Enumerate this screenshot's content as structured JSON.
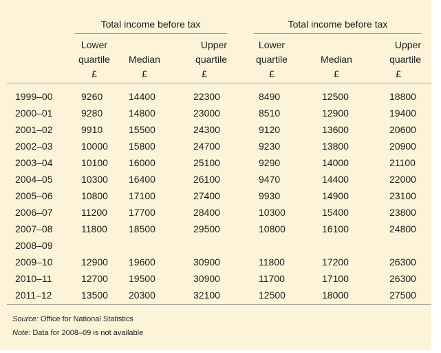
{
  "table": {
    "groups": [
      "Total income before tax",
      "Total income before tax"
    ],
    "columns": [
      {
        "line1": "Lower",
        "line2": "quartile",
        "unit": "£"
      },
      {
        "line1": "",
        "line2": "Median",
        "unit": "£"
      },
      {
        "line1": "Upper",
        "line2": "quartile",
        "unit": "£"
      },
      {
        "line1": "Lower",
        "line2": "quartile",
        "unit": "£"
      },
      {
        "line1": "",
        "line2": "Median",
        "unit": "£"
      },
      {
        "line1": "Upper",
        "line2": "quartile",
        "unit": "£"
      }
    ],
    "rows": [
      {
        "year": "1999–00",
        "values": [
          "9260",
          "14400",
          "22300",
          "8490",
          "12500",
          "18800"
        ]
      },
      {
        "year": "2000–01",
        "values": [
          "9280",
          "14800",
          "23000",
          "8510",
          "12900",
          "19400"
        ]
      },
      {
        "year": "2001–02",
        "values": [
          "9910",
          "15500",
          "24300",
          "9120",
          "13600",
          "20600"
        ]
      },
      {
        "year": "2002–03",
        "values": [
          "10000",
          "15800",
          "24700",
          "9230",
          "13800",
          "20900"
        ]
      },
      {
        "year": "2003–04",
        "values": [
          "10100",
          "16000",
          "25100",
          "9290",
          "14000",
          "21100"
        ]
      },
      {
        "year": "2004–05",
        "values": [
          "10300",
          "16400",
          "26100",
          "9470",
          "14400",
          "22000"
        ]
      },
      {
        "year": "2005–06",
        "values": [
          "10800",
          "17100",
          "27400",
          "9930",
          "14900",
          "23100"
        ]
      },
      {
        "year": "2006–07",
        "values": [
          "11200",
          "17700",
          "28400",
          "10300",
          "15400",
          "23800"
        ]
      },
      {
        "year": "2007–08",
        "values": [
          "11800",
          "18500",
          "29500",
          "10800",
          "16100",
          "24800"
        ]
      },
      {
        "year": "2008–09",
        "values": [
          "",
          "",
          "",
          "",
          "",
          ""
        ]
      },
      {
        "year": "2009–10",
        "values": [
          "12900",
          "19600",
          "30900",
          "11800",
          "17200",
          "26300"
        ]
      },
      {
        "year": "2010–11",
        "values": [
          "12700",
          "19500",
          "30900",
          "11700",
          "17100",
          "26300"
        ]
      },
      {
        "year": "2011–12",
        "values": [
          "13500",
          "20300",
          "32100",
          "12500",
          "18000",
          "27500"
        ]
      }
    ]
  },
  "footer": {
    "source_label": "Source:",
    "source_text": " Office for National Statistics",
    "note_label": "Note:",
    "note_text": " Data for 2008–09 is not available"
  },
  "colors": {
    "background": "#fdf3d9",
    "rule": "#a8a49c"
  }
}
